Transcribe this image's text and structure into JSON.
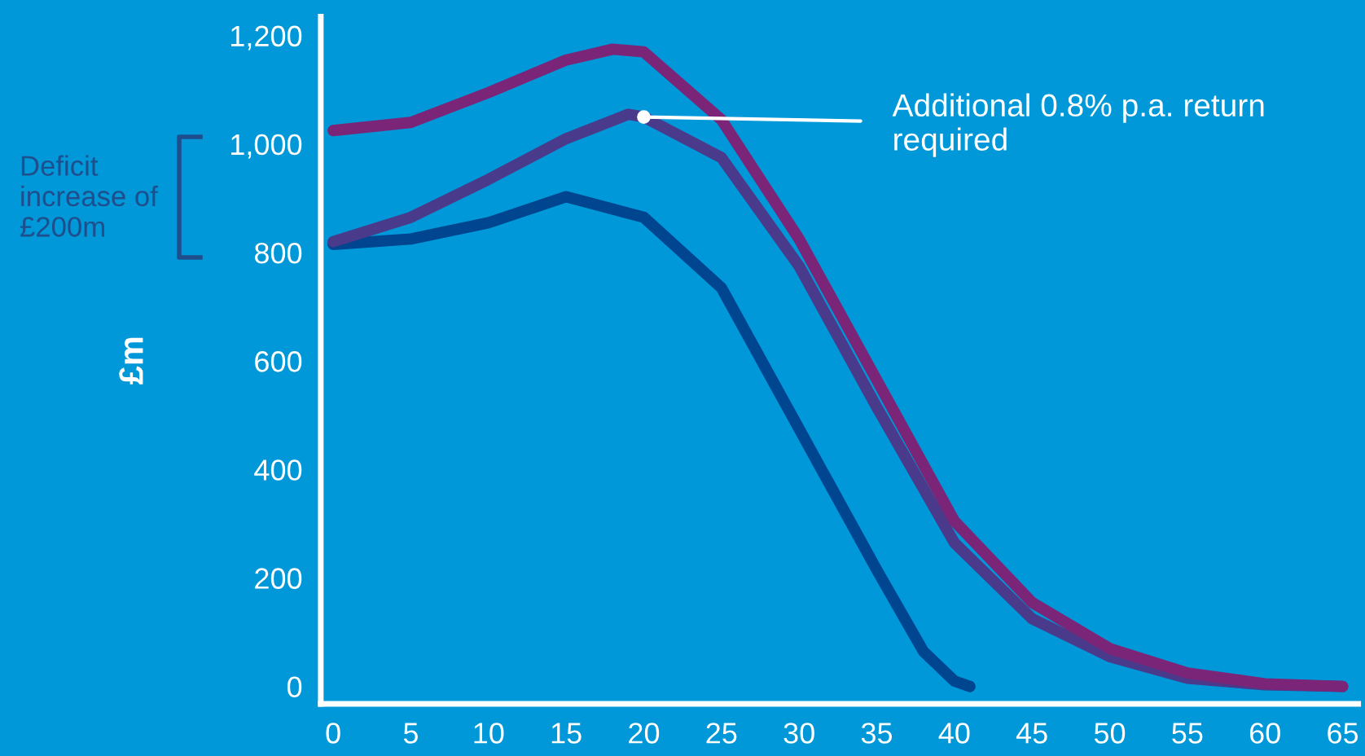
{
  "chart_data": {
    "type": "line",
    "ylabel": "£m",
    "xlim": [
      -0.8,
      66
    ],
    "ylim": [
      -32,
      1235
    ],
    "xticks": [
      0,
      5,
      10,
      15,
      20,
      25,
      30,
      35,
      40,
      45,
      50,
      55,
      60,
      65
    ],
    "yticks": [
      0,
      200,
      400,
      600,
      800,
      {
        "value": 1000,
        "label": "1,000"
      },
      {
        "value": 1200,
        "label": "1,200"
      }
    ],
    "grid": false,
    "legend": false,
    "marker": "none",
    "line_style": "solid",
    "series": [
      {
        "color": "#00458f",
        "x": [
          0,
          5,
          10,
          15,
          20,
          25,
          30,
          35,
          38,
          40,
          41
        ],
        "values": [
          815,
          825,
          855,
          903,
          865,
          735,
          475,
          215,
          65,
          10,
          0
        ]
      },
      {
        "color": "#4a3a8c",
        "x": [
          0,
          5,
          10,
          15,
          19,
          20,
          25,
          30,
          35,
          40,
          45,
          50,
          55,
          60,
          65
        ],
        "values": [
          820,
          865,
          935,
          1010,
          1055,
          1050,
          975,
          775,
          515,
          265,
          125,
          55,
          15,
          3,
          0
        ]
      },
      {
        "color": "#7a2577",
        "x": [
          0,
          5,
          10,
          15,
          18,
          20,
          25,
          30,
          35,
          40,
          45,
          50,
          55,
          60,
          65
        ],
        "values": [
          1025,
          1040,
          1095,
          1155,
          1175,
          1170,
          1045,
          825,
          565,
          305,
          155,
          70,
          25,
          5,
          0
        ]
      }
    ],
    "annotations": [
      "Deficit increase of £200m",
      {
        "text": "Additional 0.8% p.a. return required",
        "x": 20,
        "y": 1050
      }
    ]
  }
}
